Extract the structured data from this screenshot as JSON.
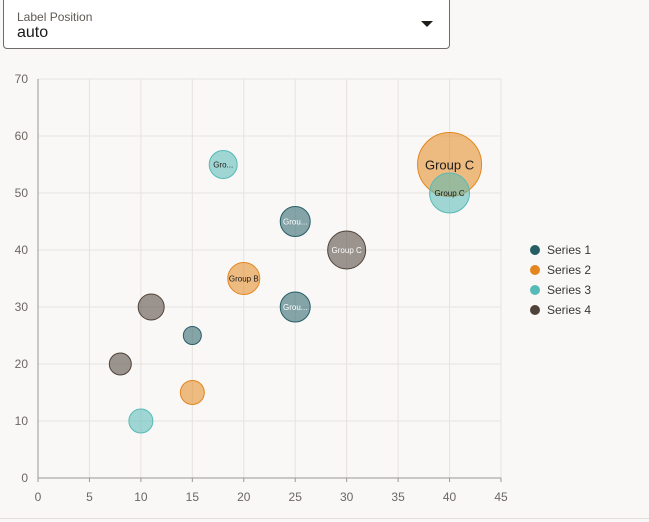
{
  "control": {
    "label": "Label Position",
    "value": "auto",
    "icon": "chevron-down-icon"
  },
  "chart_data": {
    "type": "scatter",
    "variant": "bubble",
    "title": "",
    "xlabel": "",
    "ylabel": "",
    "xlim": [
      0,
      45
    ],
    "ylim": [
      0,
      70
    ],
    "xticks": [
      "0",
      "5",
      "10",
      "15",
      "20",
      "25",
      "30",
      "35",
      "40",
      "45"
    ],
    "yticks": [
      "0",
      "10",
      "20",
      "30",
      "40",
      "50",
      "60",
      "70"
    ],
    "grid": true,
    "legend_position": "right",
    "series": [
      {
        "name": "Series 1",
        "color": "#265e66",
        "points": [
          {
            "x": 15,
            "y": 25,
            "z": 9,
            "label": ""
          },
          {
            "x": 25,
            "y": 30,
            "z": 15,
            "label": "Grou..."
          },
          {
            "x": 25,
            "y": 45,
            "z": 15,
            "label": "Grou..."
          }
        ]
      },
      {
        "name": "Series 2",
        "color": "#e3861f",
        "points": [
          {
            "x": 15,
            "y": 15,
            "z": 12,
            "label": ""
          },
          {
            "x": 20,
            "y": 35,
            "z": 16,
            "label": "Group B"
          },
          {
            "x": 40,
            "y": 55,
            "z": 32,
            "label": "Group C"
          }
        ]
      },
      {
        "name": "Series 3",
        "color": "#56bab6",
        "points": [
          {
            "x": 10,
            "y": 10,
            "z": 12,
            "label": ""
          },
          {
            "x": 18,
            "y": 55,
            "z": 14,
            "label": "Gro..."
          },
          {
            "x": 40,
            "y": 50,
            "z": 20,
            "label": "Group C"
          }
        ]
      },
      {
        "name": "Series 4",
        "color": "#4f4239",
        "points": [
          {
            "x": 8,
            "y": 20,
            "z": 11,
            "label": ""
          },
          {
            "x": 11,
            "y": 30,
            "z": 13,
            "label": ""
          },
          {
            "x": 30,
            "y": 40,
            "z": 19,
            "label": "Group C"
          }
        ]
      }
    ]
  }
}
